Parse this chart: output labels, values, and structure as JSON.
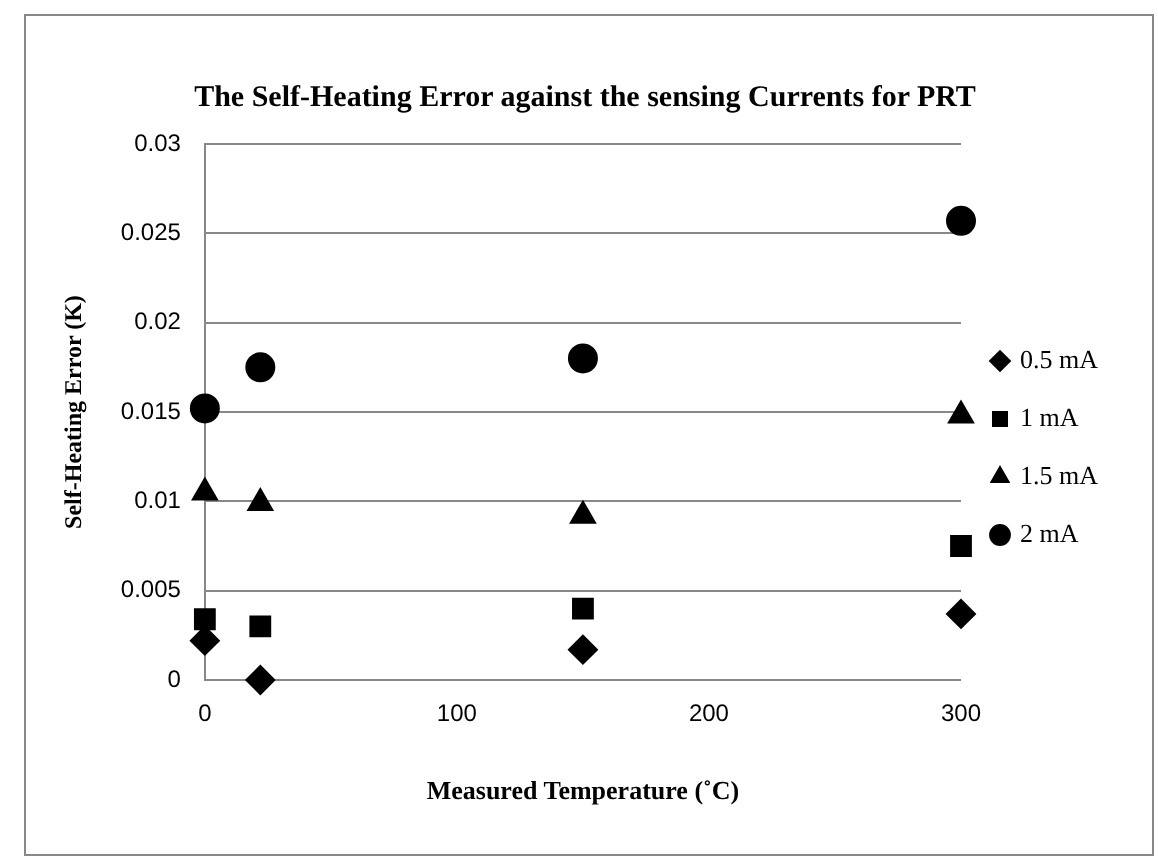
{
  "chart_data": {
    "type": "scatter",
    "title": "The Self-Heating Error against the sensing Currents for PRT",
    "xlabel": "Measured Temperature (˚C)",
    "ylabel": "Self-Heating Error (K)",
    "x": [
      0,
      22,
      150,
      300
    ],
    "series": [
      {
        "name": "0.5 mA",
        "color": "#000000",
        "marker": "diamond",
        "values": [
          0.0022,
          0,
          0.0017,
          0.0037
        ]
      },
      {
        "name": "1 mA",
        "color": "#000000",
        "marker": "square",
        "values": [
          0.0034,
          0.003,
          0.004,
          0.0075
        ]
      },
      {
        "name": "1.5 mA",
        "color": "#000000",
        "marker": "triangle",
        "values": [
          0.0105,
          0.0099,
          0.0092,
          0.0148
        ]
      },
      {
        "name": "2 mA",
        "color": "#000000",
        "marker": "circle",
        "values": [
          0.0152,
          0.0175,
          0.018,
          0.0257
        ]
      }
    ],
    "xlim": [
      0,
      300
    ],
    "xticks": [
      0,
      100,
      200,
      300
    ],
    "ylim": [
      0,
      0.03
    ],
    "yticks": [
      0,
      0.005,
      0.01,
      0.015,
      0.02,
      0.025,
      0.03
    ],
    "grid": "y",
    "legend": "right"
  }
}
